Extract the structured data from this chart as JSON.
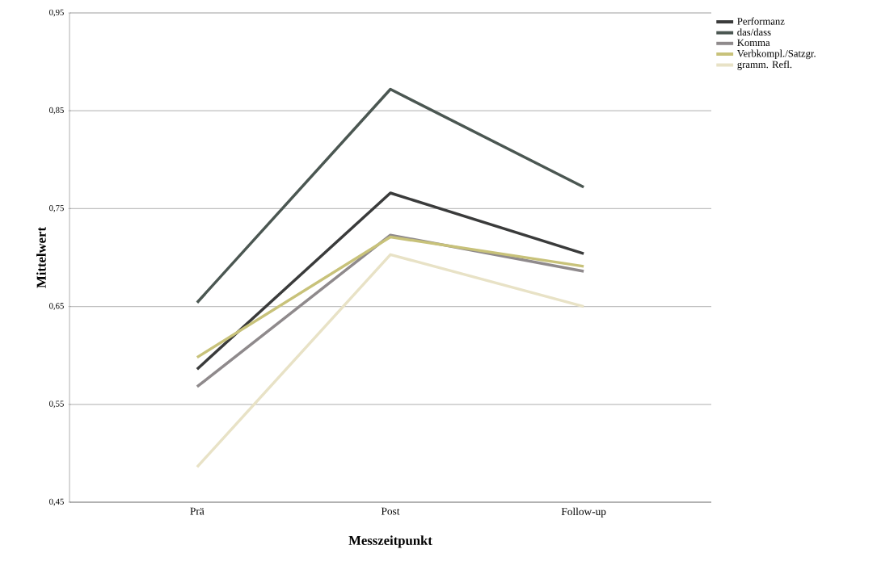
{
  "chart_data": {
    "type": "line",
    "xlabel": "Messzeitpunkt",
    "ylabel": "Mittelwert",
    "categories": [
      "Prä",
      "Post",
      "Follow-up"
    ],
    "series": [
      {
        "name": "Performanz",
        "color": "#3a3b3b",
        "values": [
          0.586,
          0.766,
          0.704
        ]
      },
      {
        "name": "das/dass",
        "color": "#4b5752",
        "values": [
          0.654,
          0.872,
          0.772
        ]
      },
      {
        "name": "Komma",
        "color": "#8f8a8c",
        "values": [
          0.568,
          0.723,
          0.686
        ]
      },
      {
        "name": "Verbkompl./Satzgr.",
        "color": "#c8c27a",
        "values": [
          0.598,
          0.721,
          0.691
        ]
      },
      {
        "name": "gramm. Refl.",
        "color": "#e8e2c6",
        "values": [
          0.486,
          0.703,
          0.65
        ]
      }
    ],
    "ylim": [
      0.45,
      0.95
    ],
    "yticks": [
      {
        "value": 0.45,
        "label": "0,45"
      },
      {
        "value": 0.55,
        "label": "0,55"
      },
      {
        "value": 0.65,
        "label": "0,65"
      },
      {
        "value": 0.75,
        "label": "0,75"
      },
      {
        "value": 0.85,
        "label": "0,85"
      },
      {
        "value": 0.95,
        "label": "0,95"
      }
    ],
    "grid": "y",
    "legend": "top right",
    "marker": "none",
    "line_style": "solid"
  }
}
